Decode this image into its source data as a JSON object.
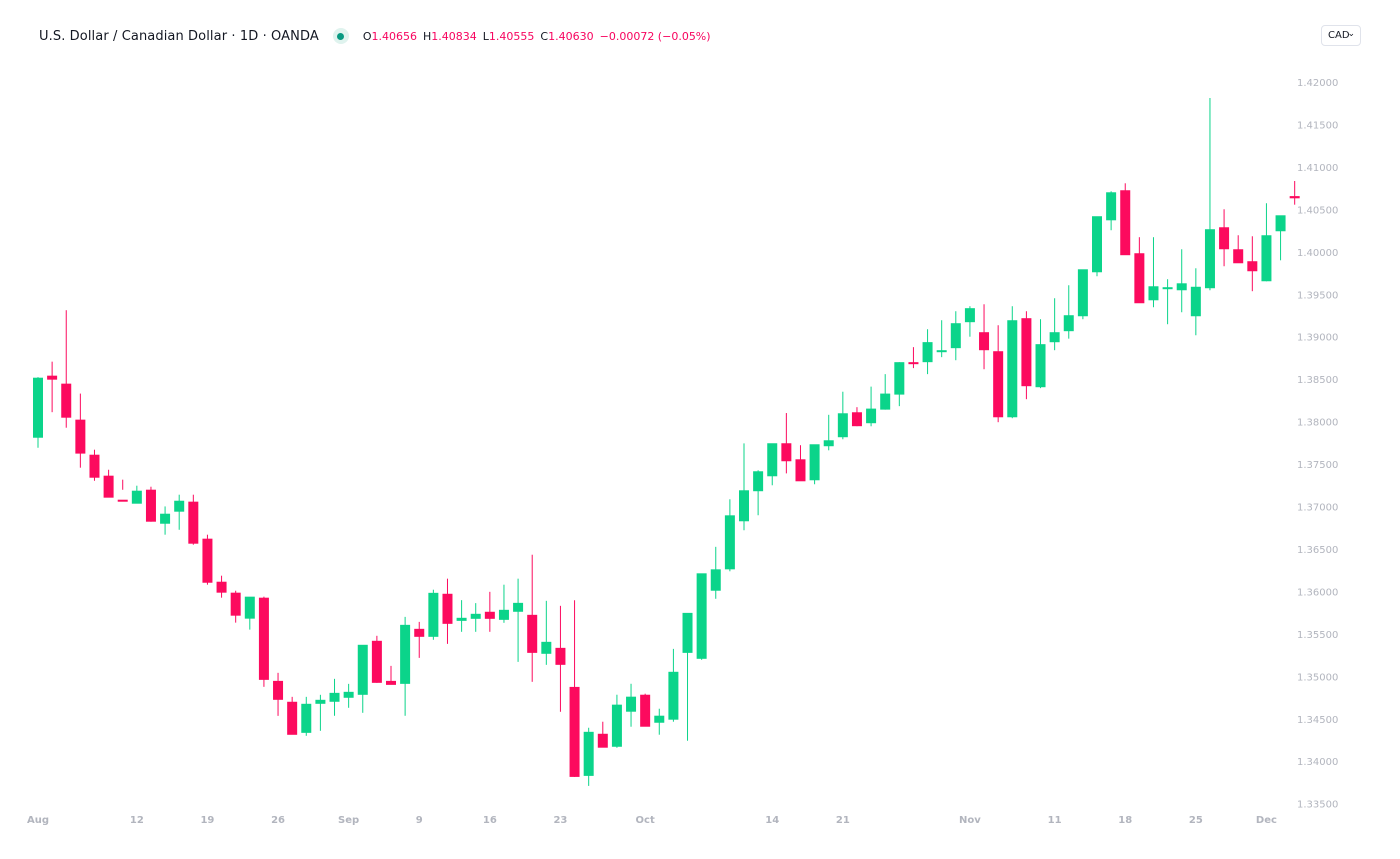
{
  "legend": {
    "title": "U.S. Dollar / Canadian Dollar · 1D · OANDA",
    "status": "market-open",
    "ohlc": {
      "o_label": "O",
      "o": "1.40656",
      "h_label": "H",
      "h": "1.40834",
      "l_label": "L",
      "l": "1.40555",
      "c_label": "C",
      "c": "1.40630",
      "change": "−0.00072 (−0.05%)"
    }
  },
  "currency_selector": {
    "value": "CAD",
    "icon": "chevron-down-icon"
  },
  "colors": {
    "up": "#0bd48a",
    "down": "#fc0a5e",
    "axis_text": "#b2b5be",
    "status_dot": "#089981"
  },
  "chart_data": {
    "type": "candlestick",
    "title": "U.S. Dollar / Canadian Dollar · 1D · OANDA",
    "xlabel": "",
    "ylabel": "",
    "ylim": [
      1.335,
      1.42
    ],
    "grid": false,
    "y_ticks": [
      "1.42000",
      "1.41500",
      "1.41000",
      "1.40500",
      "1.40000",
      "1.39500",
      "1.39000",
      "1.38500",
      "1.38000",
      "1.37500",
      "1.37000",
      "1.36500",
      "1.36000",
      "1.35500",
      "1.35000",
      "1.34500",
      "1.34000",
      "1.33500"
    ],
    "x_ticks": [
      {
        "label": "Aug",
        "index": 0
      },
      {
        "label": "12",
        "index": 7
      },
      {
        "label": "19",
        "index": 12
      },
      {
        "label": "26",
        "index": 17
      },
      {
        "label": "Sep",
        "index": 22
      },
      {
        "label": "9",
        "index": 27
      },
      {
        "label": "16",
        "index": 32
      },
      {
        "label": "23",
        "index": 37
      },
      {
        "label": "Oct",
        "index": 43
      },
      {
        "label": "14",
        "index": 52
      },
      {
        "label": "21",
        "index": 57
      },
      {
        "label": "Nov",
        "index": 66
      },
      {
        "label": "11",
        "index": 72
      },
      {
        "label": "18",
        "index": 77
      },
      {
        "label": "25",
        "index": 82
      },
      {
        "label": "Dec",
        "index": 87
      }
    ],
    "candles_px_note": "o,h,l,c in price units",
    "candles": [
      [
        1.3781,
        1.38524,
        1.37692,
        1.38517
      ],
      [
        1.38541,
        1.38706,
        1.38111,
        1.38494
      ],
      [
        1.38447,
        1.39312,
        1.37928,
        1.38046
      ],
      [
        1.38023,
        1.3833,
        1.37457,
        1.37623
      ],
      [
        1.3761,
        1.37669,
        1.37303,
        1.37339
      ],
      [
        1.37363,
        1.37433,
        1.37268,
        1.37104
      ],
      [
        1.3708,
        1.37316,
        1.37197,
        1.37057
      ],
      [
        1.37033,
        1.37245,
        1.37045,
        1.37186
      ],
      [
        1.37198,
        1.37233,
        1.36821,
        1.36821
      ],
      [
        1.36797,
        1.37001,
        1.36668,
        1.36915
      ],
      [
        1.36939,
        1.37139,
        1.36726,
        1.37068
      ],
      [
        1.37057,
        1.37139,
        1.3655,
        1.36562
      ],
      [
        1.36621,
        1.36668,
        1.36079,
        1.36102
      ],
      [
        1.36114,
        1.36185,
        1.35926,
        1.35985
      ],
      [
        1.35985,
        1.36008,
        1.35632,
        1.35714
      ],
      [
        1.35679,
        1.35926,
        1.3555,
        1.35938
      ],
      [
        1.35926,
        1.35938,
        1.34876,
        1.34958
      ],
      [
        1.34946,
        1.35041,
        1.34534,
        1.34723
      ],
      [
        1.347,
        1.34758,
        1.34405,
        1.34311
      ],
      [
        1.34334,
        1.34758,
        1.34299,
        1.34676
      ],
      [
        1.34676,
        1.34782,
        1.34358,
        1.34723
      ],
      [
        1.347,
        1.3497,
        1.34535,
        1.34805
      ],
      [
        1.34747,
        1.34911,
        1.34629,
        1.34817
      ],
      [
        1.34782,
        1.35253,
        1.3457,
        1.35371
      ],
      [
        1.35418,
        1.35477,
        1.34923,
        1.34923
      ],
      [
        1.34946,
        1.35123,
        1.34923,
        1.34899
      ],
      [
        1.34911,
        1.357,
        1.34535,
        1.35606
      ],
      [
        1.35559,
        1.35641,
        1.35217,
        1.35465
      ],
      [
        1.35465,
        1.3602,
        1.3543,
        1.35983
      ],
      [
        1.35972,
        1.3615,
        1.35382,
        1.35618
      ],
      [
        1.35653,
        1.35897,
        1.35524,
        1.35689
      ],
      [
        1.35677,
        1.35862,
        1.35524,
        1.35736
      ],
      [
        1.3576,
        1.35995,
        1.35524,
        1.35677
      ],
      [
        1.35665,
        1.36079,
        1.3563,
        1.35783
      ],
      [
        1.3576,
        1.3615,
        1.3517,
        1.35865
      ],
      [
        1.35724,
        1.36432,
        1.34935,
        1.35276
      ],
      [
        1.35265,
        1.35889,
        1.35135,
        1.35406
      ],
      [
        1.35335,
        1.3583,
        1.34582,
        1.35135
      ],
      [
        1.34875,
        1.35896,
        1.33815,
        1.33815
      ],
      [
        1.33827,
        1.34394,
        1.33709,
        1.34346
      ],
      [
        1.34323,
        1.34465,
        1.34264,
        1.34159
      ],
      [
        1.3417,
        1.34783,
        1.34158,
        1.34666
      ],
      [
        1.34583,
        1.34912,
        1.34406,
        1.3476
      ],
      [
        1.34783,
        1.34795,
        1.34524,
        1.34406
      ],
      [
        1.34453,
        1.34618,
        1.34312,
        1.34536
      ],
      [
        1.34489,
        1.35323,
        1.34465,
        1.35053
      ],
      [
        1.35276,
        1.35536,
        1.34241,
        1.35747
      ],
      [
        1.35206,
        1.35985,
        1.35194,
        1.36213
      ],
      [
        1.36008,
        1.36525,
        1.35913,
        1.3626
      ],
      [
        1.3626,
        1.37085,
        1.36237,
        1.36896
      ],
      [
        1.36826,
        1.37744,
        1.3672,
        1.37191
      ],
      [
        1.3718,
        1.37427,
        1.36897,
        1.37415
      ],
      [
        1.37356,
        1.37506,
        1.3725,
        1.37745
      ],
      [
        1.37745,
        1.38101,
        1.3739,
        1.37533
      ],
      [
        1.37556,
        1.37722,
        1.37545,
        1.37297
      ],
      [
        1.37309,
        1.3738,
        1.37262,
        1.37733
      ],
      [
        1.3771,
        1.3808,
        1.37662,
        1.3778
      ],
      [
        1.37816,
        1.38352,
        1.37792,
        1.38098
      ],
      [
        1.3811,
        1.3817,
        1.37946,
        1.37946
      ],
      [
        1.37981,
        1.38412,
        1.37945,
        1.38153
      ],
      [
        1.38141,
        1.38559,
        1.38141,
        1.3833
      ],
      [
        1.38318,
        1.387,
        1.38182,
        1.387
      ],
      [
        1.387,
        1.38877,
        1.3863,
        1.38677
      ],
      [
        1.387,
        1.39088,
        1.38559,
        1.38936
      ],
      [
        1.38841,
        1.39194,
        1.38759,
        1.38841
      ],
      [
        1.38865,
        1.393,
        1.38723,
        1.39159
      ],
      [
        1.39171,
        1.39359,
        1.39,
        1.39336
      ],
      [
        1.39053,
        1.39382,
        1.38617,
        1.38841
      ],
      [
        1.38829,
        1.39135,
        1.37993,
        1.38051
      ],
      [
        1.38051,
        1.39359,
        1.3804,
        1.39194
      ],
      [
        1.39218,
        1.393,
        1.38264,
        1.38417
      ],
      [
        1.38405,
        1.39206,
        1.38394,
        1.38912
      ],
      [
        1.38935,
        1.39453,
        1.38841,
        1.39053
      ],
      [
        1.39065,
        1.39606,
        1.38977,
        1.39253
      ],
      [
        1.39241,
        1.39782,
        1.39206,
        1.39794
      ],
      [
        1.39759,
        1.40407,
        1.39712,
        1.40419
      ],
      [
        1.40371,
        1.40713,
        1.40254,
        1.40701
      ],
      [
        1.40725,
        1.40807,
        1.39994,
        1.3996
      ],
      [
        1.39983,
        1.40172,
        1.39418,
        1.39394
      ],
      [
        1.39429,
        1.40172,
        1.39347,
        1.39594
      ],
      [
        1.39583,
        1.39677,
        1.39147,
        1.39583
      ],
      [
        1.39547,
        1.4003,
        1.39288,
        1.39629
      ],
      [
        1.39241,
        1.39806,
        1.39017,
        1.39588
      ],
      [
        1.39571,
        1.41812,
        1.39547,
        1.40266
      ],
      [
        1.40289,
        1.40501,
        1.3983,
        1.4003
      ],
      [
        1.4003,
        1.40195,
        1.39889,
        1.39865
      ],
      [
        1.39889,
        1.40183,
        1.39536,
        1.39771
      ],
      [
        1.39653,
        1.40572,
        1.39653,
        1.40195
      ],
      [
        1.40242,
        1.40301,
        1.399,
        1.4043
      ],
      [
        1.40656,
        1.40834,
        1.40555,
        1.4063
      ]
    ]
  }
}
